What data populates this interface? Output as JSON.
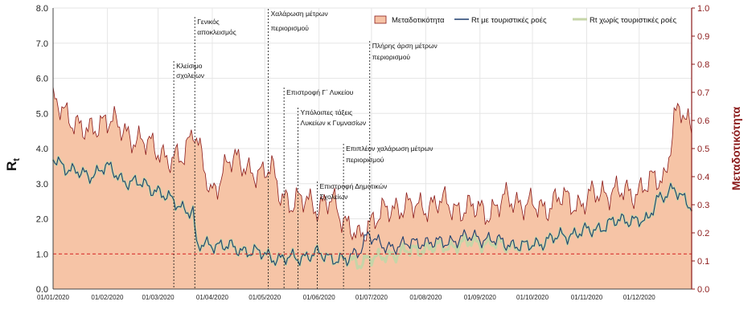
{
  "chart_data": {
    "type": "area+line",
    "title": "",
    "ylabel_left": "R",
    "ylabel_left_sub": "t",
    "ylabel_right": "Μεταδοτικότητα",
    "y_left_range": [
      0,
      8
    ],
    "y_left_ticks": [
      "0.0",
      "1.0",
      "2.0",
      "3.0",
      "4.0",
      "5.0",
      "6.0",
      "7.0",
      "8.0"
    ],
    "y_right_range": [
      0,
      1
    ],
    "y_right_ticks": [
      "0.0",
      "0.1",
      "0.2",
      "0.3",
      "0.4",
      "0.5",
      "0.6",
      "0.7",
      "0.8",
      "0.9",
      "1.0"
    ],
    "x_ticks": [
      "01/01/2020",
      "01/02/2020",
      "01/03/2020",
      "01/04/2020",
      "01/05/2020",
      "01/06/2020",
      "01/07/2020",
      "01/08/2020",
      "01/09/2020",
      "01/10/2020",
      "01/11/2020",
      "01/12/2020"
    ],
    "x_days": 365,
    "tick_month_start_days": [
      0,
      31,
      60,
      91,
      121,
      152,
      182,
      213,
      244,
      274,
      305,
      335
    ],
    "threshold": 1.0,
    "legend": [
      {
        "name": "Μεταδοτικότητα",
        "color": "#f6c4a6"
      },
      {
        "name": "Rt με τουριστικές ροές",
        "color": "#1f3f6e"
      },
      {
        "name": "Rt χωρίς τουριστικές ροές",
        "color": "#c6d5a8"
      }
    ],
    "colors": {
      "area_fill": "#f6c4a6",
      "area_edge": "#8b1a1a",
      "rt_with": "#1f3f6e",
      "rt_without": "#c6d5a8",
      "threshold": "#d62020",
      "grid": "#e6e6e6",
      "right_axis": "#8b1a1a"
    },
    "series_anchors": {
      "transmissibility_rt_scale": [
        [
          0,
          5.3
        ],
        [
          10,
          4.9
        ],
        [
          20,
          4.4
        ],
        [
          30,
          4.9
        ],
        [
          40,
          4.5
        ],
        [
          50,
          4.2
        ],
        [
          60,
          4.0
        ],
        [
          68,
          3.6
        ],
        [
          75,
          3.8
        ],
        [
          80,
          4.7
        ],
        [
          85,
          3.7
        ],
        [
          90,
          2.6
        ],
        [
          100,
          3.7
        ],
        [
          110,
          3.5
        ],
        [
          120,
          3.2
        ],
        [
          125,
          3.5
        ],
        [
          130,
          2.8
        ],
        [
          136,
          2.3
        ],
        [
          145,
          2.7
        ],
        [
          152,
          2.2
        ],
        [
          160,
          2.6
        ],
        [
          168,
          1.8
        ],
        [
          175,
          1.4
        ],
        [
          180,
          1.9
        ],
        [
          190,
          2.2
        ],
        [
          200,
          2.4
        ],
        [
          210,
          2.3
        ],
        [
          220,
          2.5
        ],
        [
          230,
          2.3
        ],
        [
          240,
          2.3
        ],
        [
          250,
          2.2
        ],
        [
          260,
          2.6
        ],
        [
          270,
          2.4
        ],
        [
          280,
          2.3
        ],
        [
          290,
          2.6
        ],
        [
          300,
          2.4
        ],
        [
          310,
          2.7
        ],
        [
          320,
          2.8
        ],
        [
          330,
          2.7
        ],
        [
          340,
          3.0
        ],
        [
          350,
          3.2
        ],
        [
          355,
          4.9
        ],
        [
          360,
          5.0
        ],
        [
          365,
          4.5
        ]
      ],
      "rt_with_tourism": [
        [
          0,
          3.7
        ],
        [
          10,
          3.4
        ],
        [
          20,
          3.2
        ],
        [
          30,
          3.5
        ],
        [
          40,
          3.1
        ],
        [
          50,
          3.0
        ],
        [
          60,
          2.8
        ],
        [
          68,
          2.5
        ],
        [
          75,
          2.3
        ],
        [
          80,
          2.2
        ],
        [
          82,
          1.2
        ],
        [
          90,
          1.3
        ],
        [
          100,
          1.2
        ],
        [
          110,
          1.1
        ],
        [
          120,
          1.0
        ],
        [
          130,
          0.85
        ],
        [
          140,
          0.9
        ],
        [
          150,
          1.0
        ],
        [
          160,
          0.9
        ],
        [
          168,
          0.8
        ],
        [
          175,
          1.1
        ],
        [
          180,
          1.6
        ],
        [
          185,
          1.3
        ],
        [
          190,
          1.2
        ],
        [
          200,
          1.25
        ],
        [
          210,
          1.35
        ],
        [
          220,
          1.3
        ],
        [
          230,
          1.4
        ],
        [
          240,
          1.5
        ],
        [
          250,
          1.4
        ],
        [
          260,
          1.3
        ],
        [
          270,
          1.2
        ],
        [
          280,
          1.35
        ],
        [
          290,
          1.5
        ],
        [
          300,
          1.6
        ],
        [
          310,
          1.7
        ],
        [
          320,
          1.9
        ],
        [
          330,
          2.0
        ],
        [
          340,
          1.9
        ],
        [
          345,
          2.6
        ],
        [
          350,
          2.7
        ],
        [
          355,
          2.8
        ],
        [
          360,
          2.6
        ],
        [
          365,
          2.4
        ]
      ],
      "rt_without_tourism": [
        [
          0,
          3.7
        ],
        [
          10,
          3.4
        ],
        [
          20,
          3.2
        ],
        [
          30,
          3.5
        ],
        [
          40,
          3.1
        ],
        [
          50,
          3.0
        ],
        [
          60,
          2.8
        ],
        [
          68,
          2.5
        ],
        [
          75,
          2.3
        ],
        [
          80,
          2.2
        ],
        [
          82,
          1.2
        ],
        [
          90,
          1.3
        ],
        [
          100,
          1.2
        ],
        [
          110,
          1.1
        ],
        [
          120,
          1.0
        ],
        [
          130,
          0.85
        ],
        [
          140,
          0.9
        ],
        [
          150,
          1.0
        ],
        [
          160,
          0.9
        ],
        [
          168,
          0.8
        ],
        [
          175,
          0.75
        ],
        [
          180,
          0.9
        ],
        [
          185,
          0.85
        ],
        [
          190,
          0.95
        ],
        [
          200,
          1.05
        ],
        [
          210,
          1.15
        ],
        [
          220,
          1.2
        ],
        [
          230,
          1.25
        ],
        [
          240,
          1.35
        ],
        [
          250,
          1.3
        ],
        [
          260,
          1.25
        ],
        [
          270,
          1.2
        ],
        [
          280,
          1.35
        ],
        [
          290,
          1.5
        ],
        [
          300,
          1.6
        ],
        [
          310,
          1.7
        ],
        [
          320,
          1.9
        ],
        [
          330,
          2.0
        ],
        [
          340,
          1.9
        ],
        [
          345,
          2.6
        ],
        [
          350,
          2.7
        ],
        [
          355,
          2.8
        ],
        [
          360,
          2.6
        ],
        [
          365,
          2.4
        ]
      ]
    },
    "events": [
      {
        "day": 69,
        "line1": "Κλείσιμο",
        "line2": "σχολείων"
      },
      {
        "day": 81,
        "line1": "Γενικός",
        "line2": "αποκλεισμός"
      },
      {
        "day": 123,
        "line1": "Χαλάρωση μέτρων",
        "line2": "περιορισμού"
      },
      {
        "day": 132,
        "line1": "Επιστροφή Γ΄ Λυκείου",
        "line2": ""
      },
      {
        "day": 140,
        "line1": "Υπόλοιπες τάξεις",
        "line2": "Λυκείων κ Γυμνασίων"
      },
      {
        "day": 151,
        "line1": "Επιστροφή Δημοτικών",
        "line2": "Σχολείων"
      },
      {
        "day": 166,
        "line1": "Επιπλέον χαλάρωση μέτρων",
        "line2": "περιορισμού"
      },
      {
        "day": 181,
        "line1": "Πλήρης άρση μέτρων",
        "line2": "περιορισμού"
      }
    ]
  }
}
